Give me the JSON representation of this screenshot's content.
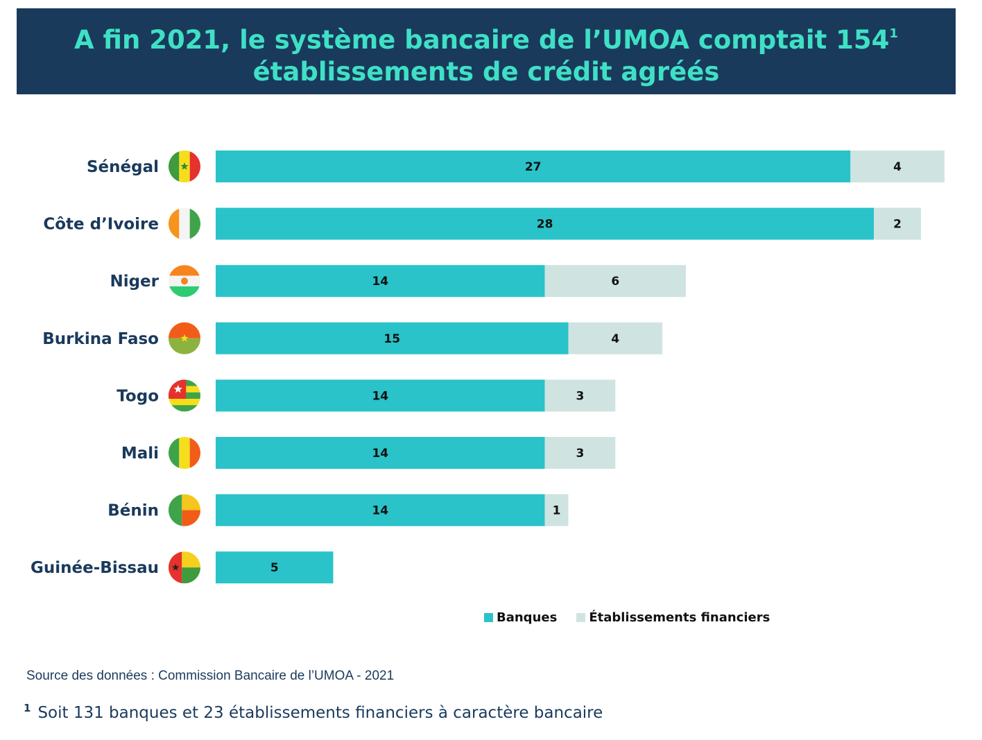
{
  "header": {
    "title_line1": "A fin 2021, le système bancaire de l’UMOA comptait 154",
    "title_sup": "1",
    "title_line2": "établissements de crédit agréés"
  },
  "colors": {
    "banques": "#29c3c9",
    "etablissements": "#cfe4e0",
    "header_bg": "#1a3a5c",
    "title": "#3fe0c5"
  },
  "chart_data": {
    "type": "bar",
    "orientation": "horizontal",
    "stacked": true,
    "categories": [
      "Sénégal",
      "Côte d’Ivoire",
      "Niger",
      "Burkina Faso",
      "Togo",
      "Mali",
      "Bénin",
      "Guinée-Bissau"
    ],
    "series": [
      {
        "name": "Banques",
        "values": [
          27,
          28,
          14,
          15,
          14,
          14,
          14,
          5
        ]
      },
      {
        "name": "Établissements financiers",
        "values": [
          4,
          2,
          6,
          4,
          3,
          3,
          1,
          0
        ]
      }
    ],
    "flag_icons": [
      "flag-senegal-icon",
      "flag-cote-divoire-icon",
      "flag-niger-icon",
      "flag-burkina-faso-icon",
      "flag-togo-icon",
      "flag-mali-icon",
      "flag-benin-icon",
      "flag-guinea-bissau-icon"
    ],
    "legend_position": "bottom-right",
    "grid": false
  },
  "legend": {
    "banques": "Banques",
    "etablissements": "Établissements financiers"
  },
  "source": "Source des données : Commission Bancaire de l’UMOA - 2021",
  "footnote": {
    "mark": "1",
    "text": "Soit 131 banques et 23 établissements financiers à caractère bancaire"
  }
}
